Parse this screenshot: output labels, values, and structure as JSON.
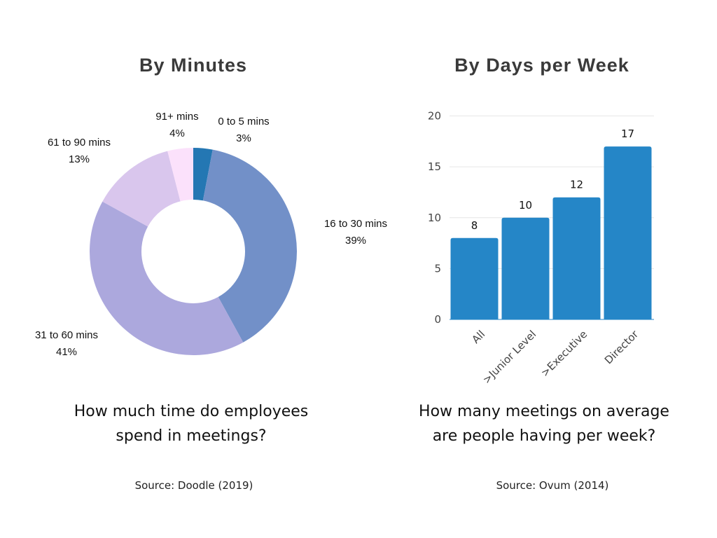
{
  "chart_data": [
    {
      "type": "pie",
      "title": "By Minutes",
      "subtitle": "How much time do employees spend in meetings?",
      "source": "Source: Doodle (2019)",
      "slices": [
        {
          "label": "0 to 5 mins",
          "value": 3,
          "value_label": "3%",
          "color": "#2477b3"
        },
        {
          "label": "16 to 30 mins",
          "value": 39,
          "value_label": "39%",
          "color": "#7290c8"
        },
        {
          "label": "31 to 60 mins",
          "value": 41,
          "value_label": "41%",
          "color": "#aca8dd"
        },
        {
          "label": "61 to 90 mins",
          "value": 13,
          "value_label": "13%",
          "color": "#d9c6ed"
        },
        {
          "label": "91+ mins",
          "value": 4,
          "value_label": "4%",
          "color": "#fbe1fb"
        }
      ],
      "donut": true
    },
    {
      "type": "bar",
      "title": "By Days per Week",
      "subtitle": "How many meetings on average are people having per week?",
      "source": "Source: Ovum (2014)",
      "categories": [
        "All",
        ">Junior Level",
        ">Executive",
        "Director"
      ],
      "values": [
        8,
        10,
        12,
        17
      ],
      "ylim": [
        0,
        20
      ],
      "yticks": [
        "0",
        "5",
        "10",
        "15",
        "20"
      ],
      "grid": true,
      "color": "#2586c7"
    }
  ],
  "left": {
    "title": "By Minutes",
    "question_line1": "How much time do employees",
    "question_line2": "spend in meetings?",
    "source": "Source: Doodle (2019)"
  },
  "right": {
    "title": "By Days per Week",
    "question_line1": "How many meetings on average",
    "question_line2": "are people having per week?",
    "source": "Source: Ovum (2014)"
  }
}
